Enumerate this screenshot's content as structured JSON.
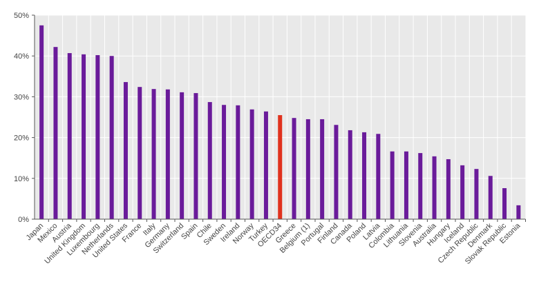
{
  "chart_data": {
    "type": "bar",
    "title": "",
    "xlabel": "",
    "ylabel": "",
    "ylim": [
      0,
      50
    ],
    "yticks": [
      0,
      10,
      20,
      30,
      40,
      50
    ],
    "ytick_labels": [
      "0%",
      "10%",
      "20%",
      "30%",
      "40%",
      "50%"
    ],
    "grid": true,
    "categories": [
      "Japan",
      "Mexico",
      "Austria",
      "United Kingdom",
      "Luxembourg",
      "Netherlands",
      "United States",
      "France",
      "Italy",
      "Germany",
      "Switzerland",
      "Spain",
      "Chile",
      "Sweden",
      "Ireland",
      "Norway",
      "Turkey",
      "OECD34",
      "Greece",
      "Belgium (1)",
      "Portugal",
      "Finland",
      "Canada",
      "Poland",
      "Latvia",
      "Colombia",
      "Lithuania",
      "Slovenia",
      "Australia",
      "Hungary",
      "Iceland",
      "Czech Republic",
      "Denmark",
      "Slovak Republic",
      "Estonia"
    ],
    "values": [
      47.5,
      42.2,
      40.7,
      40.4,
      40.2,
      40.0,
      33.6,
      32.4,
      31.9,
      31.8,
      31.1,
      30.9,
      28.7,
      28.0,
      27.9,
      26.9,
      26.4,
      25.5,
      24.8,
      24.5,
      24.5,
      23.1,
      21.8,
      21.3,
      20.9,
      16.6,
      16.6,
      16.2,
      15.4,
      14.7,
      13.2,
      12.3,
      10.6,
      7.6,
      3.4
    ],
    "highlight": "OECD34",
    "colors": {
      "bar": "#6a1b9a",
      "highlight": "#e0321e",
      "background": "#e9e9e9",
      "grid": "#ffffff"
    }
  }
}
